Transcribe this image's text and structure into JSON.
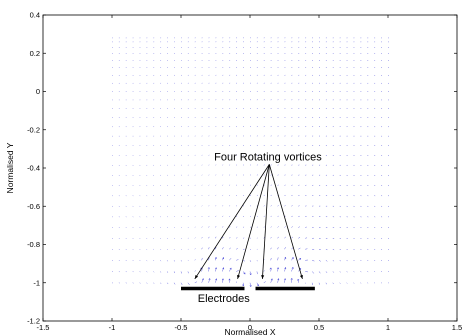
{
  "chart_data": {
    "type": "quiver",
    "xlabel": "Normalised X",
    "ylabel": "Normalised Y",
    "xlim": [
      -1.5,
      1.5
    ],
    "ylim": [
      -1.2,
      0.4
    ],
    "x_ticks": [
      "-1.5",
      "-1",
      "-0.5",
      "0",
      "0.5",
      "1",
      "1.5"
    ],
    "y_ticks": [
      "0.4",
      "0.2",
      "0",
      "-0.2",
      "-0.4",
      "-0.6",
      "-0.8",
      "-1",
      "-1.2"
    ],
    "grid": false,
    "legend": "none",
    "vector_field": {
      "x_range": [
        -1,
        1
      ],
      "y_range": [
        -1,
        0.28
      ],
      "columns": 41,
      "rows": 28,
      "color": "#3b3bd6"
    },
    "vortex_centers": [
      {
        "x": -0.4,
        "y": -0.98
      },
      {
        "x": -0.09,
        "y": -0.98
      },
      {
        "x": 0.09,
        "y": -0.98
      },
      {
        "x": 0.38,
        "y": -0.98
      }
    ],
    "electrodes": [
      {
        "x": [
          -0.5,
          -0.04
        ],
        "y": -1.03
      },
      {
        "x": [
          0.04,
          0.47
        ],
        "y": -1.03
      }
    ],
    "annotations": [
      {
        "label": "Four Rotating vortices",
        "x": 0.13,
        "y": -0.36
      },
      {
        "label": "Electrodes",
        "x": -0.19,
        "y": -1.1
      }
    ]
  },
  "colors": {
    "vectors": "#3b3bd6",
    "axes": "#000000",
    "electrodes": "#000000",
    "annotation_arrows": "#000000"
  }
}
